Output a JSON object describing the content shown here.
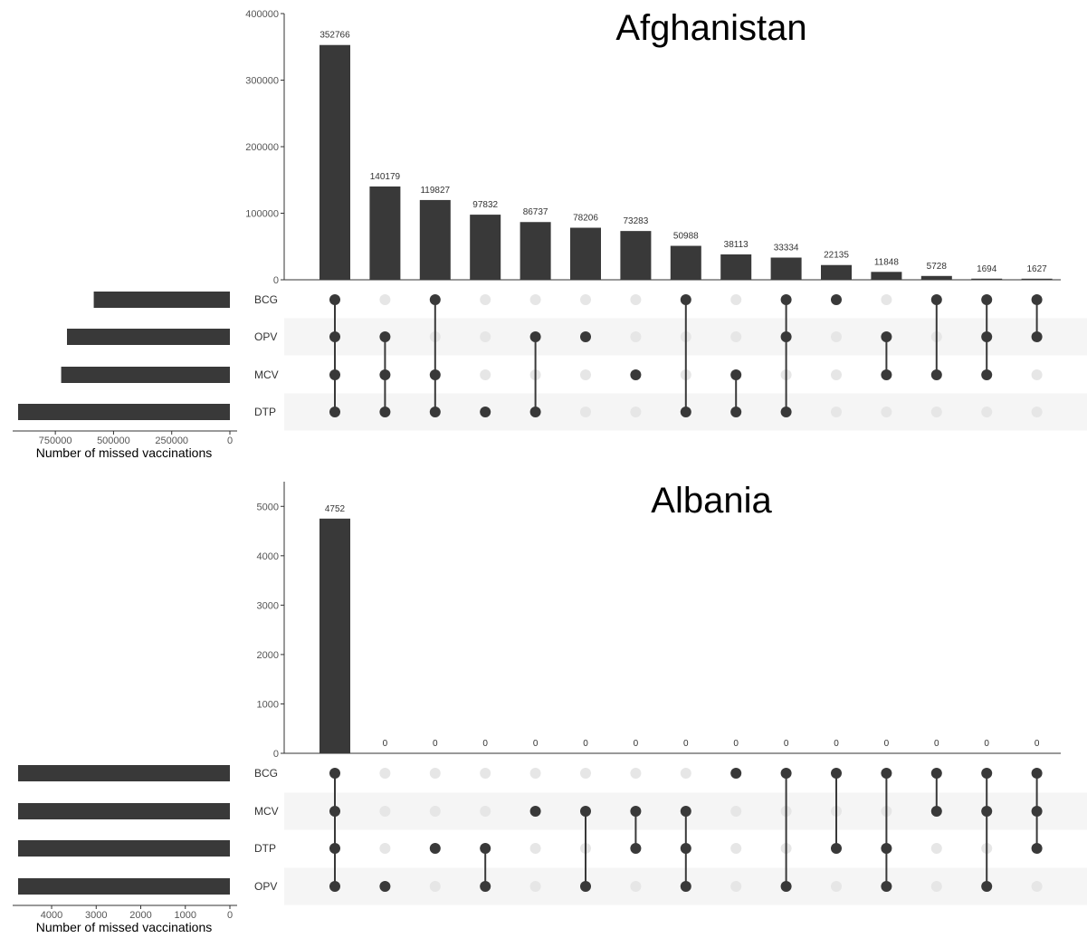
{
  "colors": {
    "bar": "#393939",
    "dot_active": "#393939",
    "dot_inactive": "#e6e6e6",
    "stripe": "#f5f5f5",
    "axis": "#333333",
    "tick_text": "#555555",
    "label_text": "#333333",
    "title_text": "#000000"
  },
  "chart_data": [
    {
      "type": "upset",
      "title": "Afghanistan",
      "sets": [
        "BCG",
        "OPV",
        "MCV",
        "DTP"
      ],
      "set_sizes": [
        585000,
        700000,
        725000,
        910000
      ],
      "set_size_axis": {
        "label": "Number of missed vaccinations",
        "ticks": [
          750000,
          500000,
          250000,
          0
        ],
        "tick_labels": [
          "750000",
          "500000",
          "250000",
          "0"
        ],
        "max": 910000
      },
      "intersection_axis": {
        "ylim": [
          0,
          400000
        ],
        "ticks": [
          0,
          100000,
          200000,
          300000,
          400000
        ],
        "tick_labels": [
          "0",
          "100000",
          "200000",
          "300000",
          "400000"
        ]
      },
      "intersections": [
        {
          "sets": [
            "BCG",
            "OPV",
            "MCV",
            "DTP"
          ],
          "value": 352766,
          "label": "352766"
        },
        {
          "sets": [
            "OPV",
            "MCV",
            "DTP"
          ],
          "value": 140179,
          "label": "140179"
        },
        {
          "sets": [
            "BCG",
            "MCV",
            "DTP"
          ],
          "value": 119827,
          "label": "119827"
        },
        {
          "sets": [
            "DTP"
          ],
          "value": 97832,
          "label": "97832"
        },
        {
          "sets": [
            "OPV",
            "DTP"
          ],
          "value": 86737,
          "label": "86737"
        },
        {
          "sets": [
            "OPV"
          ],
          "value": 78206,
          "label": "78206"
        },
        {
          "sets": [
            "MCV"
          ],
          "value": 73283,
          "label": "73283"
        },
        {
          "sets": [
            "BCG",
            "DTP"
          ],
          "value": 50988,
          "label": "50988"
        },
        {
          "sets": [
            "MCV",
            "DTP"
          ],
          "value": 38113,
          "label": "38113"
        },
        {
          "sets": [
            "BCG",
            "OPV",
            "DTP"
          ],
          "value": 33334,
          "label": "33334"
        },
        {
          "sets": [
            "BCG"
          ],
          "value": 22135,
          "label": "22135"
        },
        {
          "sets": [
            "OPV",
            "MCV"
          ],
          "value": 11848,
          "label": "11848"
        },
        {
          "sets": [
            "BCG",
            "MCV"
          ],
          "value": 5728,
          "label": "5728"
        },
        {
          "sets": [
            "BCG",
            "OPV",
            "MCV"
          ],
          "value": 1694,
          "label": "1694"
        },
        {
          "sets": [
            "BCG",
            "OPV"
          ],
          "value": 1627,
          "label": "1627"
        }
      ]
    },
    {
      "type": "upset",
      "title": "Albania",
      "sets": [
        "BCG",
        "MCV",
        "DTP",
        "OPV"
      ],
      "set_sizes": [
        4752,
        4752,
        4752,
        4752
      ],
      "set_size_axis": {
        "label": "Number of missed vaccinations",
        "ticks": [
          4000,
          3000,
          2000,
          1000,
          0
        ],
        "tick_labels": [
          "4000",
          "3000",
          "2000",
          "1000",
          "0"
        ],
        "max": 4752
      },
      "intersection_axis": {
        "ylim": [
          0,
          5500
        ],
        "ticks": [
          0,
          1000,
          2000,
          3000,
          4000,
          5000
        ],
        "tick_labels": [
          "0",
          "1000",
          "2000",
          "3000",
          "4000",
          "5000"
        ]
      },
      "intersections": [
        {
          "sets": [
            "BCG",
            "MCV",
            "DTP",
            "OPV"
          ],
          "value": 4752,
          "label": "4752"
        },
        {
          "sets": [
            "OPV"
          ],
          "value": 0,
          "label": "0"
        },
        {
          "sets": [
            "DTP"
          ],
          "value": 0,
          "label": "0"
        },
        {
          "sets": [
            "DTP",
            "OPV"
          ],
          "value": 0,
          "label": "0"
        },
        {
          "sets": [
            "MCV"
          ],
          "value": 0,
          "label": "0"
        },
        {
          "sets": [
            "MCV",
            "OPV"
          ],
          "value": 0,
          "label": "0"
        },
        {
          "sets": [
            "MCV",
            "DTP"
          ],
          "value": 0,
          "label": "0"
        },
        {
          "sets": [
            "MCV",
            "DTP",
            "OPV"
          ],
          "value": 0,
          "label": "0"
        },
        {
          "sets": [
            "BCG"
          ],
          "value": 0,
          "label": "0"
        },
        {
          "sets": [
            "BCG",
            "OPV"
          ],
          "value": 0,
          "label": "0"
        },
        {
          "sets": [
            "BCG",
            "DTP"
          ],
          "value": 0,
          "label": "0"
        },
        {
          "sets": [
            "BCG",
            "DTP",
            "OPV"
          ],
          "value": 0,
          "label": "0"
        },
        {
          "sets": [
            "BCG",
            "MCV"
          ],
          "value": 0,
          "label": "0"
        },
        {
          "sets": [
            "BCG",
            "MCV",
            "OPV"
          ],
          "value": 0,
          "label": "0"
        },
        {
          "sets": [
            "BCG",
            "MCV",
            "DTP"
          ],
          "value": 0,
          "label": "0"
        }
      ]
    }
  ]
}
